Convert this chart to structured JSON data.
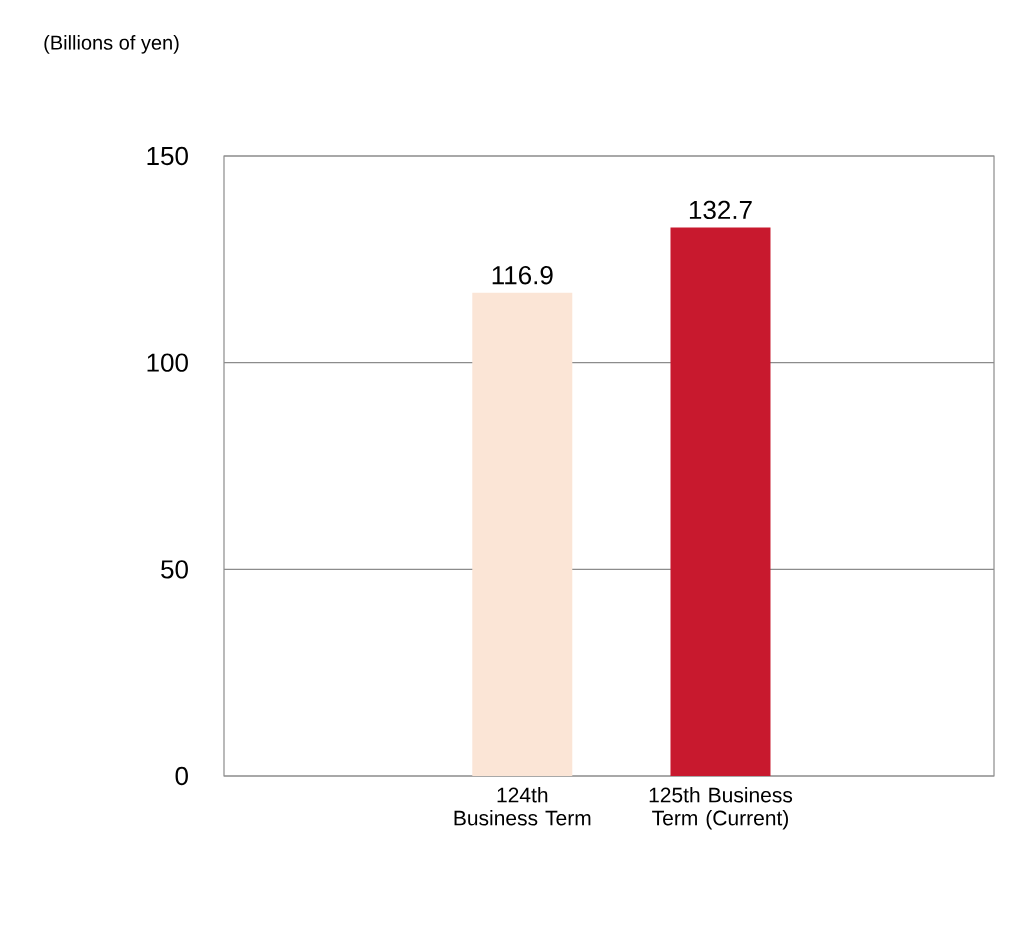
{
  "chart_data": {
    "type": "bar",
    "ylabel": "(Billions of yen)",
    "categories": [
      "124th Business Term",
      "125th Business Term (Current)"
    ],
    "values": [
      116.9,
      132.7
    ],
    "colors": [
      "#fbe5d6",
      "#c8192e"
    ],
    "ylim": [
      0,
      150
    ],
    "yticks": [
      0,
      50,
      100,
      150
    ],
    "grid": "y",
    "data_labels": true
  }
}
